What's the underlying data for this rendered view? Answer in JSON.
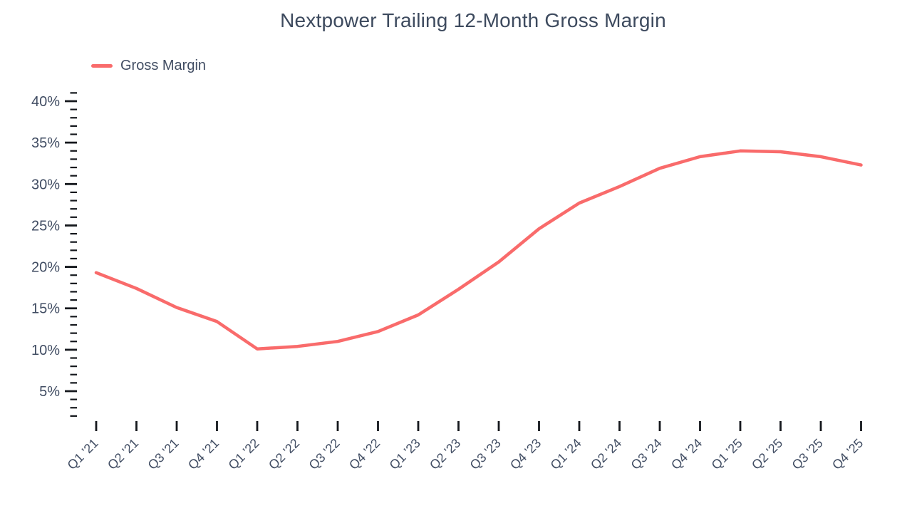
{
  "chart_data": {
    "type": "line",
    "title": "Nextpower Trailing 12-Month Gross Margin",
    "xlabel": "",
    "ylabel": "",
    "grid": false,
    "legend": {
      "position": "top-left",
      "entries": [
        "Gross Margin"
      ]
    },
    "categories": [
      "Q1 '21",
      "Q2 '21",
      "Q3 '21",
      "Q4 '21",
      "Q1 '22",
      "Q2 '22",
      "Q3 '22",
      "Q4 '22",
      "Q1 '23",
      "Q2 '23",
      "Q3 '23",
      "Q4 '23",
      "Q1 '24",
      "Q2 '24",
      "Q3 '24",
      "Q4 '24",
      "Q1 '25",
      "Q2 '25",
      "Q3 '25",
      "Q4 '25"
    ],
    "series": [
      {
        "name": "Gross Margin",
        "color": "#f96b6b",
        "values": [
          19.3,
          17.4,
          15.1,
          13.4,
          10.1,
          10.4,
          11.0,
          12.2,
          14.2,
          17.3,
          20.6,
          24.6,
          27.7,
          29.7,
          31.9,
          33.3,
          34.0,
          33.9,
          33.3,
          32.3
        ]
      }
    ],
    "y_axis": {
      "tick_values": [
        5,
        10,
        15,
        20,
        25,
        30,
        35,
        40
      ],
      "tick_labels": [
        "5%",
        "10%",
        "15%",
        "20%",
        "25%",
        "30%",
        "35%",
        "40%"
      ],
      "minor_tick_step": 1,
      "range": [
        2,
        41
      ],
      "unit": "%"
    },
    "colors": {
      "title_text": "#3d4a5e",
      "axis_label_text": "#414d63",
      "tick_mark": "#15181d",
      "line": "#f96b6b",
      "background": "#ffffff"
    }
  }
}
